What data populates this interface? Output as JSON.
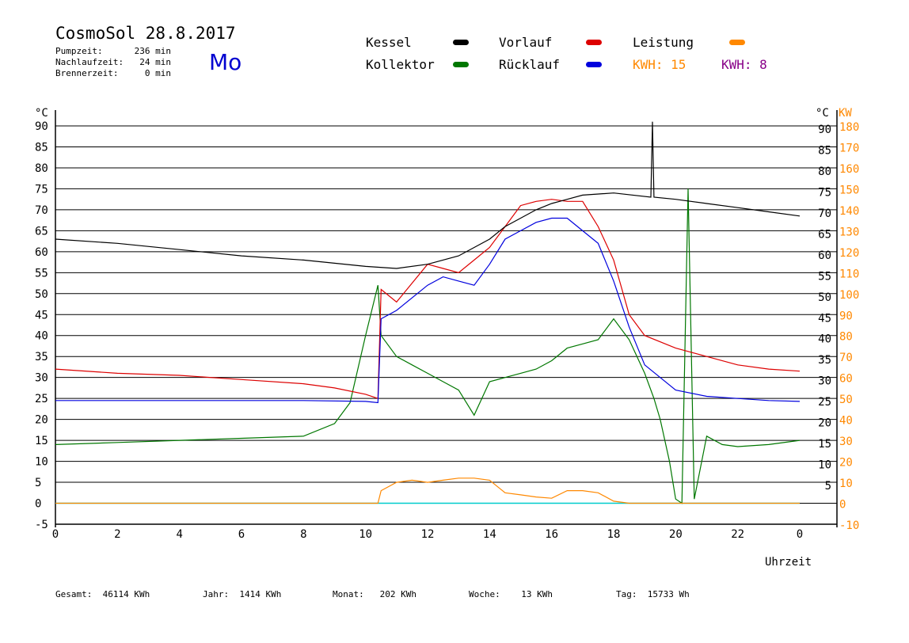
{
  "header": {
    "title": "CosmoSol 28.8.2017",
    "weekday": "Mo",
    "stats": [
      {
        "label": "Pumpzeit:",
        "value": "236 min"
      },
      {
        "label": "Nachlaufzeit:",
        "value": "24 min"
      },
      {
        "label": "Brennerzeit:",
        "value": "0 min"
      }
    ]
  },
  "legend": {
    "items": [
      {
        "label": "Kessel",
        "color": "#000000"
      },
      {
        "label": "Vorlauf",
        "color": "#dd0000"
      },
      {
        "label": "Leistung",
        "color": "#ff8800"
      },
      {
        "label": "Kollektor",
        "color": "#007700"
      },
      {
        "label": "Rücklauf",
        "color": "#0000dd"
      }
    ],
    "kwh1": "KWH: 15",
    "kwh1_color": "#ff8800",
    "kwh2": "KWH: 8",
    "kwh2_color": "#880088"
  },
  "footer": {
    "gesamt_label": "Gesamt:",
    "gesamt_value": "46114 KWh",
    "jahr_label": "Jahr:",
    "jahr_value": "1414 KWh",
    "monat_label": "Monat:",
    "monat_value": "202 KWh",
    "woche_label": "Woche:",
    "woche_value": "13 KWh",
    "tag_label": "Tag:",
    "tag_value": "15733 Wh"
  },
  "chart_data": {
    "type": "line",
    "xlabel": "Uhrzeit",
    "ylabel_left": "°C",
    "ylabel_right_1": "°C",
    "ylabel_right_2": "KW",
    "xlim": [
      0,
      24
    ],
    "ylim": [
      -5,
      90
    ],
    "x_ticks": [
      "0",
      "2",
      "4",
      "6",
      "8",
      "10",
      "12",
      "14",
      "16",
      "18",
      "20",
      "22",
      "0"
    ],
    "y_left_ticks": [
      "90",
      "85",
      "80",
      "75",
      "70",
      "65",
      "60",
      "55",
      "50",
      "45",
      "40",
      "35",
      "30",
      "25",
      "20",
      "15",
      "10",
      "5",
      "0",
      "-5"
    ],
    "y_right_ticks": [
      "90",
      "85",
      "80",
      "75",
      "70",
      "65",
      "60",
      "55",
      "50",
      "45",
      "40",
      "35",
      "30",
      "25",
      "20",
      "15",
      "10",
      "5"
    ],
    "y_kw_ticks": [
      "180",
      "170",
      "160",
      "150",
      "140",
      "130",
      "120",
      "110",
      "100",
      "90",
      "80",
      "70",
      "60",
      "50",
      "40",
      "30",
      "20",
      "10",
      "0",
      "-10"
    ],
    "grid": true,
    "series": [
      {
        "name": "Kessel",
        "color": "#000000",
        "x": [
          0,
          2,
          4,
          6,
          8,
          10,
          11,
          12,
          13,
          14,
          14.5,
          15,
          15.5,
          16,
          16.5,
          17,
          18,
          19.2,
          19.25,
          19.3,
          20,
          21,
          22,
          23,
          24
        ],
        "y": [
          63,
          62,
          60.5,
          59,
          58,
          56.5,
          56,
          57,
          59,
          63,
          66,
          68,
          70,
          71.5,
          72.5,
          73.5,
          74,
          73,
          91,
          73,
          72.5,
          71.5,
          70.5,
          69.5,
          68.5
        ]
      },
      {
        "name": "Vorlauf",
        "color": "#dd0000",
        "x": [
          0,
          2,
          4,
          6,
          8,
          9,
          10,
          10.4,
          10.5,
          11,
          12,
          12.5,
          13,
          13.5,
          14,
          14.5,
          15,
          15.5,
          16,
          16.5,
          17,
          17.5,
          18,
          18.5,
          19,
          20,
          21,
          22,
          23,
          24
        ],
        "y": [
          32,
          31,
          30.5,
          29.5,
          28.5,
          27.5,
          26,
          25,
          51,
          48,
          57,
          56,
          55,
          58,
          61,
          66,
          71,
          72,
          72.5,
          72,
          72,
          66,
          58,
          45,
          40,
          37,
          35,
          33,
          32,
          31.5
        ]
      },
      {
        "name": "Rücklauf",
        "color": "#0000dd",
        "x": [
          0,
          2,
          4,
          6,
          8,
          10,
          10.4,
          10.5,
          11,
          12,
          12.5,
          13,
          13.5,
          14,
          14.5,
          15,
          15.5,
          16,
          16.5,
          17,
          17.5,
          18,
          18.5,
          19,
          20,
          21,
          22,
          23,
          24
        ],
        "y": [
          24.5,
          24.5,
          24.5,
          24.5,
          24.5,
          24.3,
          24,
          44,
          46,
          52,
          54,
          53,
          52,
          57,
          63,
          65,
          67,
          68,
          68,
          65,
          62,
          53,
          42,
          33,
          27,
          25.5,
          25,
          24.5,
          24.3
        ]
      },
      {
        "name": "Kollektor",
        "color": "#007700",
        "x": [
          0,
          2,
          4,
          6,
          8,
          9,
          9.5,
          10,
          10.4,
          10.5,
          11,
          11.5,
          12,
          12.5,
          13,
          13.5,
          14,
          14.5,
          15,
          15.5,
          16,
          16.5,
          17,
          17.5,
          18,
          18.5,
          19,
          19.3,
          19.5,
          19.8,
          20,
          20.2,
          20.4,
          20.6,
          21,
          21.5,
          22,
          23,
          24
        ],
        "y": [
          14,
          14.5,
          15,
          15.5,
          16,
          19,
          24,
          40,
          52,
          40,
          35,
          33,
          31,
          29,
          27,
          21,
          29,
          30,
          31,
          32,
          34,
          37,
          38,
          39,
          44,
          39,
          31,
          25,
          20,
          10,
          1,
          0,
          75,
          1,
          16,
          14,
          13.5,
          14,
          15
        ]
      },
      {
        "name": "Leistung",
        "color": "#ff8800",
        "x": [
          0,
          9.5,
          10.4,
          10.5,
          11,
          11.5,
          12,
          12.5,
          13,
          13.5,
          14,
          14.5,
          15,
          15.5,
          16,
          16.5,
          17,
          17.5,
          18,
          18.5,
          24
        ],
        "y": [
          0,
          0,
          0,
          3,
          5,
          5.5,
          5,
          5.5,
          6,
          6,
          5.5,
          2.5,
          2,
          1.5,
          1.2,
          3,
          3,
          2.5,
          0.5,
          0,
          0
        ]
      }
    ],
    "baseline": {
      "name": "Null",
      "color": "#00cccc",
      "y": 0
    }
  }
}
